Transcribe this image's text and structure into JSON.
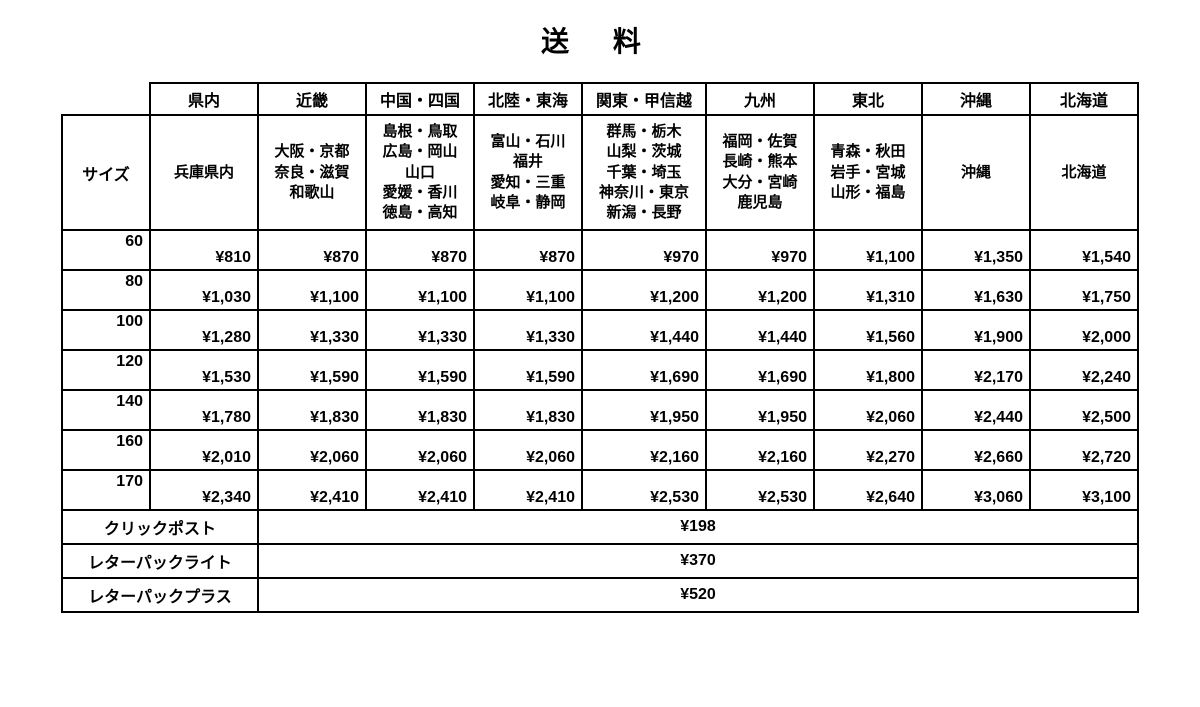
{
  "title": "送 料",
  "size_header": "サイズ",
  "regions": [
    {
      "name": "県内",
      "sub": "兵庫県内"
    },
    {
      "name": "近畿",
      "sub": "大阪・京都\n奈良・滋賀\n和歌山"
    },
    {
      "name": "中国・四国",
      "sub": "島根・鳥取\n広島・岡山\n山口\n愛媛・香川\n徳島・高知"
    },
    {
      "name": "北陸・東海",
      "sub": "富山・石川\n福井\n愛知・三重\n岐阜・静岡"
    },
    {
      "name": "関東・甲信越",
      "sub": "群馬・栃木\n山梨・茨城\n千葉・埼玉\n神奈川・東京\n新潟・長野"
    },
    {
      "name": "九州",
      "sub": "福岡・佐賀\n長崎・熊本\n大分・宮崎\n鹿児島"
    },
    {
      "name": "東北",
      "sub": "青森・秋田\n岩手・宮城\n山形・福島"
    },
    {
      "name": "沖縄",
      "sub": "沖縄"
    },
    {
      "name": "北海道",
      "sub": "北海道"
    }
  ],
  "rows": [
    {
      "size": "60",
      "prices": [
        "¥810",
        "¥870",
        "¥870",
        "¥870",
        "¥970",
        "¥970",
        "¥1,100",
        "¥1,350",
        "¥1,540"
      ]
    },
    {
      "size": "80",
      "prices": [
        "¥1,030",
        "¥1,100",
        "¥1,100",
        "¥1,100",
        "¥1,200",
        "¥1,200",
        "¥1,310",
        "¥1,630",
        "¥1,750"
      ]
    },
    {
      "size": "100",
      "prices": [
        "¥1,280",
        "¥1,330",
        "¥1,330",
        "¥1,330",
        "¥1,440",
        "¥1,440",
        "¥1,560",
        "¥1,900",
        "¥2,000"
      ]
    },
    {
      "size": "120",
      "prices": [
        "¥1,530",
        "¥1,590",
        "¥1,590",
        "¥1,590",
        "¥1,690",
        "¥1,690",
        "¥1,800",
        "¥2,170",
        "¥2,240"
      ]
    },
    {
      "size": "140",
      "prices": [
        "¥1,780",
        "¥1,830",
        "¥1,830",
        "¥1,830",
        "¥1,950",
        "¥1,950",
        "¥2,060",
        "¥2,440",
        "¥2,500"
      ]
    },
    {
      "size": "160",
      "prices": [
        "¥2,010",
        "¥2,060",
        "¥2,060",
        "¥2,060",
        "¥2,160",
        "¥2,160",
        "¥2,270",
        "¥2,660",
        "¥2,720"
      ]
    },
    {
      "size": "170",
      "prices": [
        "¥2,340",
        "¥2,410",
        "¥2,410",
        "¥2,410",
        "¥2,530",
        "¥2,530",
        "¥2,640",
        "¥3,060",
        "¥3,100"
      ]
    }
  ],
  "flat": [
    {
      "label": "クリックポスト",
      "price": "¥198"
    },
    {
      "label": "レターパックライト",
      "price": "¥370"
    },
    {
      "label": "レターパックプラス",
      "price": "¥520"
    }
  ],
  "style": {
    "border_color": "#000000",
    "background_color": "#ffffff",
    "text_color": "#000000",
    "font_family": "MS Gothic",
    "title_fontsize": 28,
    "cell_fontsize": 16
  }
}
